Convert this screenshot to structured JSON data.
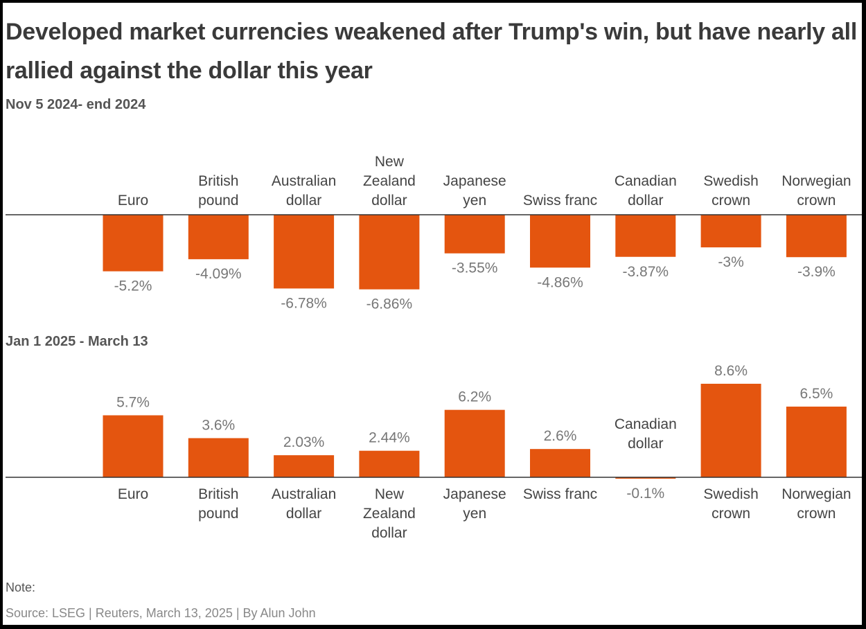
{
  "title": "Developed market currencies weakened after Trump's win, but have nearly all rallied against the dollar this year",
  "footer": {
    "note": "Note:",
    "source": "Source: LSEG | Reuters, March 13, 2025 | By Alun John"
  },
  "colors": {
    "bar": "#e4550f",
    "axis": "#333333"
  },
  "chart_data": [
    {
      "type": "bar",
      "title": "Nov 5 2024- end 2024",
      "unit": "%",
      "categories": [
        "Euro",
        "British pound",
        "Australian dollar",
        "New Zealand dollar",
        "Japanese yen",
        "Swiss franc",
        "Canadian dollar",
        "Swedish crown",
        "Norwegian crown"
      ],
      "category_lines": [
        [
          "Euro"
        ],
        [
          "British",
          "pound"
        ],
        [
          "Australian",
          "dollar"
        ],
        [
          "New",
          "Zealand",
          "dollar"
        ],
        [
          "Japanese",
          "yen"
        ],
        [
          "Swiss franc"
        ],
        [
          "Canadian",
          "dollar"
        ],
        [
          "Swedish",
          "crown"
        ],
        [
          "Norwegian",
          "crown"
        ]
      ],
      "values": [
        -5.2,
        -4.09,
        -6.78,
        -6.86,
        -3.55,
        -4.86,
        -3.87,
        -3,
        -3.9
      ],
      "labels": [
        "-5.2%",
        "-4.09%",
        "-6.78%",
        "-6.86%",
        "-3.55%",
        "-4.86%",
        "-3.87%",
        "-3%",
        "-3.9%"
      ],
      "ylim": [
        -8.6,
        8.6
      ]
    },
    {
      "type": "bar",
      "title": "Jan 1 2025 - March 13",
      "unit": "%",
      "categories": [
        "Euro",
        "British pound",
        "Australian dollar",
        "New Zealand dollar",
        "Japanese yen",
        "Swiss franc",
        "Canadian dollar",
        "Swedish crown",
        "Norwegian crown"
      ],
      "category_lines": [
        [
          "Euro"
        ],
        [
          "British",
          "pound"
        ],
        [
          "Australian",
          "dollar"
        ],
        [
          "New",
          "Zealand",
          "dollar"
        ],
        [
          "Japanese",
          "yen"
        ],
        [
          "Swiss franc"
        ],
        [
          "Canadian",
          "dollar"
        ],
        [
          "Swedish",
          "crown"
        ],
        [
          "Norwegian",
          "crown"
        ]
      ],
      "values": [
        5.7,
        3.6,
        2.03,
        2.44,
        6.2,
        2.6,
        -0.1,
        8.6,
        6.5
      ],
      "labels": [
        "5.7%",
        "3.6%",
        "2.03%",
        "2.44%",
        "6.2%",
        "2.6%",
        "-0.1%",
        "8.6%",
        "6.5%"
      ],
      "ylim": [
        -8.6,
        8.6
      ]
    }
  ]
}
